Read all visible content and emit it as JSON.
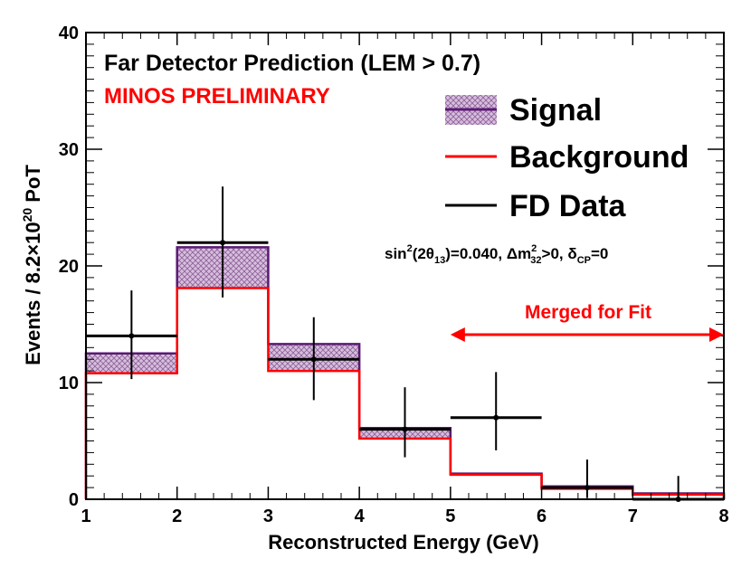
{
  "chart_data": {
    "type": "histogram",
    "title": "Far Detector Prediction (LEM > 0.7)",
    "subtitle": "MINOS PRELIMINARY",
    "xlabel": "Reconstructed Energy (GeV)",
    "ylabel_prefix": "Events / 8.2",
    "ylabel_times": "×",
    "ylabel_base": "10",
    "ylabel_exp": "20",
    "ylabel_suffix": " PoT",
    "xlim": [
      1,
      8
    ],
    "ylim": [
      0,
      40
    ],
    "x_ticks": [
      "1",
      "2",
      "3",
      "4",
      "5",
      "6",
      "7",
      "8"
    ],
    "y_ticks": [
      "0",
      "10",
      "20",
      "30",
      "40"
    ],
    "bin_edges": [
      1,
      2,
      3,
      4,
      5,
      6,
      7,
      8
    ],
    "series": [
      {
        "name": "Signal",
        "kind": "signal_band",
        "total": [
          12.5,
          21.6,
          13.3,
          6.1,
          2.2,
          1.1,
          0.5
        ]
      },
      {
        "name": "Background",
        "kind": "background_line",
        "values": [
          10.8,
          18.1,
          11.0,
          5.2,
          2.1,
          0.9,
          0.4
        ]
      },
      {
        "name": "FD Data",
        "kind": "data_points",
        "points": [
          {
            "x": 1.5,
            "y": 14,
            "err_lo": 3.7,
            "err_hi": 3.9,
            "x_lo": 1,
            "x_hi": 2
          },
          {
            "x": 2.5,
            "y": 22,
            "err_lo": 4.7,
            "err_hi": 4.8,
            "x_lo": 2,
            "x_hi": 3
          },
          {
            "x": 3.5,
            "y": 12,
            "err_lo": 3.5,
            "err_hi": 3.6,
            "x_lo": 3,
            "x_hi": 4
          },
          {
            "x": 4.5,
            "y": 6,
            "err_lo": 2.4,
            "err_hi": 3.6,
            "x_lo": 4,
            "x_hi": 5
          },
          {
            "x": 5.5,
            "y": 7,
            "err_lo": 2.8,
            "err_hi": 3.9,
            "x_lo": 5,
            "x_hi": 6
          },
          {
            "x": 6.5,
            "y": 1,
            "err_lo": 0.9,
            "err_hi": 2.4,
            "x_lo": 6,
            "x_hi": 7
          },
          {
            "x": 7.5,
            "y": 0,
            "err_lo": 0,
            "err_hi": 2.0,
            "x_lo": 7,
            "x_hi": 8
          }
        ]
      }
    ],
    "legend": {
      "placement": "top-right",
      "items": [
        "Signal",
        "Background",
        "FD Data"
      ]
    },
    "annotations": {
      "params_sin": "sin",
      "params_sin_exp": "2",
      "params_theta": "(2θ",
      "params_theta_sub": "13",
      "params_rest1": ")=0.040, Δm",
      "params_dm_exp": "2",
      "params_dm_sub": "32",
      "params_rest2": ">0, δ",
      "params_cp_sub": "CP",
      "params_rest3": "=0",
      "merged_label": "Merged for Fit",
      "merged_range": [
        5,
        8
      ]
    },
    "colors": {
      "signal_fill": "#c9a8cf",
      "signal_line": "#5b1a73",
      "background": "#ff0000",
      "data": "#000000",
      "merged": "#ff0000",
      "preliminary": "#ff0000"
    },
    "grid": false
  }
}
